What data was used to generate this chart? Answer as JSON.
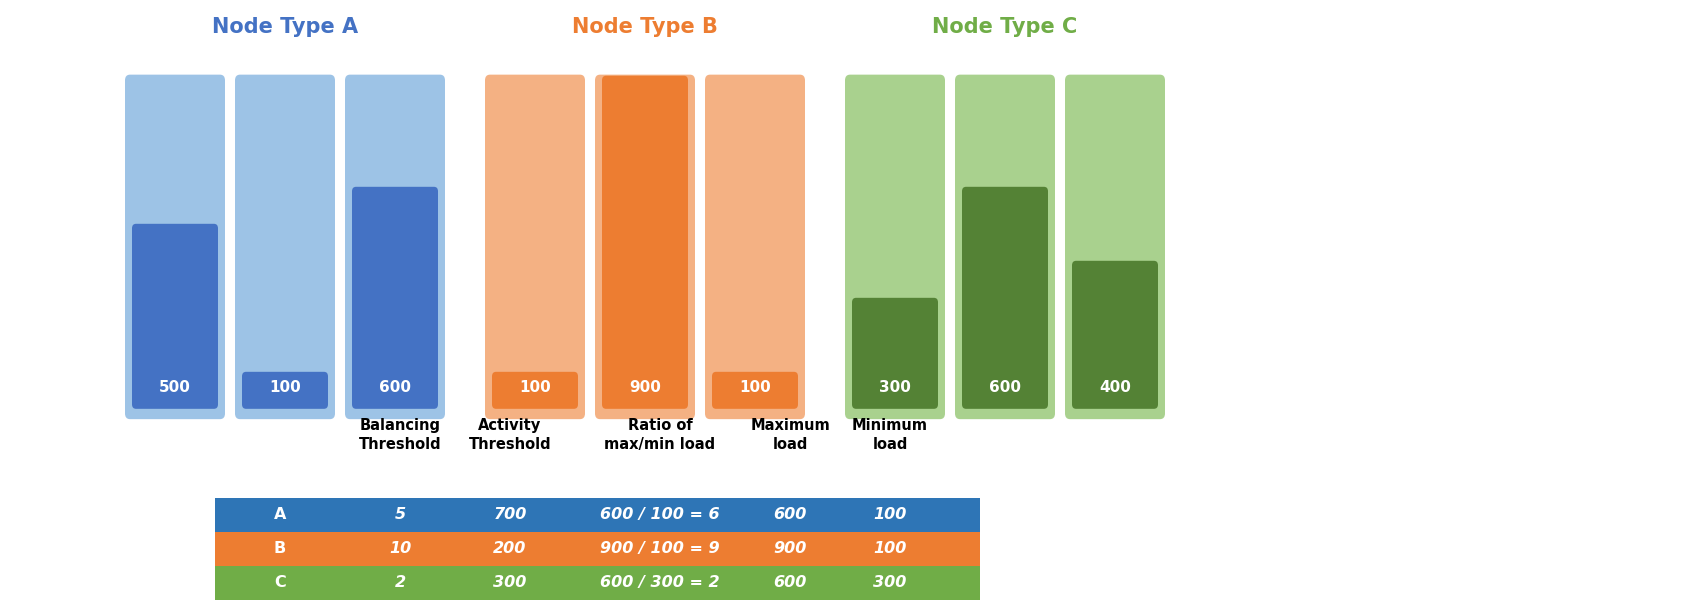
{
  "node_types": [
    {
      "label": "Node Type A",
      "label_color": "#4472C4",
      "nodes": [
        {
          "value": 500,
          "bg_color": "#9DC3E6",
          "fg_color": "#4472C4",
          "capacity": 900
        },
        {
          "value": 100,
          "bg_color": "#9DC3E6",
          "fg_color": "#4472C4",
          "capacity": 900
        },
        {
          "value": 600,
          "bg_color": "#9DC3E6",
          "fg_color": "#4472C4",
          "capacity": 900
        }
      ]
    },
    {
      "label": "Node Type B",
      "label_color": "#ED7D31",
      "nodes": [
        {
          "value": 100,
          "bg_color": "#F4B183",
          "fg_color": "#ED7D31",
          "capacity": 900
        },
        {
          "value": 900,
          "bg_color": "#F4B183",
          "fg_color": "#ED7D31",
          "capacity": 900
        },
        {
          "value": 100,
          "bg_color": "#F4B183",
          "fg_color": "#ED7D31",
          "capacity": 900
        }
      ]
    },
    {
      "label": "Node Type C",
      "label_color": "#70AD47",
      "nodes": [
        {
          "value": 300,
          "bg_color": "#A9D18E",
          "fg_color": "#548235",
          "capacity": 900
        },
        {
          "value": 600,
          "bg_color": "#A9D18E",
          "fg_color": "#548235",
          "capacity": 900
        },
        {
          "value": 400,
          "bg_color": "#A9D18E",
          "fg_color": "#548235",
          "capacity": 900
        }
      ]
    }
  ],
  "max_capacity": 900,
  "table": {
    "headers": [
      "",
      "Balancing\nThreshold",
      "Activity\nThreshold",
      "Ratio of\nmax/min load",
      "Maximum\nload",
      "Minimum\nload"
    ],
    "rows": [
      {
        "label": "A",
        "color": "#2E75B6",
        "balancing": "5",
        "activity": "700",
        "ratio": "600 / 100 = 6",
        "max": "600",
        "min": "100"
      },
      {
        "label": "B",
        "color": "#ED7D31",
        "balancing": "10",
        "activity": "200",
        "ratio": "900 / 100 = 9",
        "max": "900",
        "min": "100"
      },
      {
        "label": "C",
        "color": "#70AD47",
        "balancing": "2",
        "activity": "300",
        "ratio": "600 / 300 = 2",
        "max": "600",
        "min": "300"
      }
    ]
  }
}
